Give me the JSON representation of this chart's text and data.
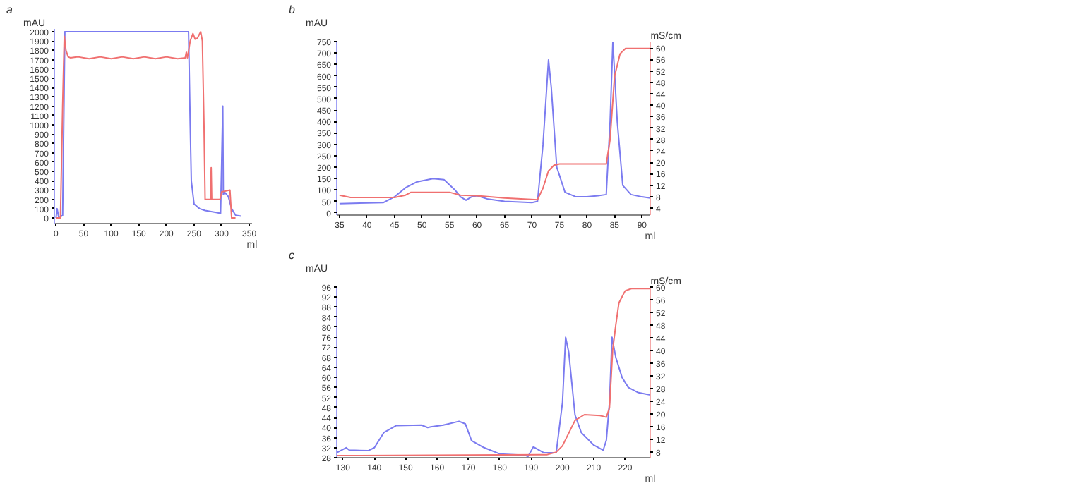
{
  "chart_data": [
    {
      "type": "line",
      "title": "a",
      "xlabel": "ml",
      "ylabel": "mAU",
      "xlim": [
        -3,
        355
      ],
      "ylim": [
        -60,
        2030
      ],
      "xticks": [
        0,
        50,
        100,
        150,
        200,
        250,
        300,
        350
      ],
      "yticks": [
        0,
        100,
        200,
        300,
        400,
        500,
        600,
        700,
        800,
        900,
        1000,
        1100,
        1200,
        1300,
        1400,
        1500,
        1600,
        1700,
        1800,
        1900,
        2000
      ],
      "grid": false,
      "series": [
        {
          "color": "#7b7bf0",
          "x": [
            0,
            2,
            5,
            8,
            12,
            16,
            240,
            243,
            245,
            250,
            260,
            270,
            290,
            298,
            300,
            302,
            303,
            305,
            312,
            318,
            325,
            335
          ],
          "values": [
            0,
            100,
            0,
            10,
            30,
            2000,
            2000,
            1000,
            400,
            150,
            100,
            80,
            60,
            50,
            600,
            1200,
            250,
            280,
            230,
            100,
            30,
            20
          ]
        },
        {
          "color": "#f07070",
          "x": [
            0,
            8,
            12,
            15,
            18,
            22,
            26,
            40,
            60,
            80,
            100,
            120,
            140,
            160,
            180,
            200,
            220,
            234,
            236,
            238,
            243,
            248,
            252,
            256,
            262,
            265,
            268,
            270,
            280,
            281,
            282,
            283,
            297,
            300,
            315,
            318,
            325
          ],
          "values": [
            0,
            0,
            1200,
            1950,
            1800,
            1730,
            1720,
            1730,
            1710,
            1730,
            1710,
            1730,
            1710,
            1730,
            1710,
            1730,
            1710,
            1720,
            1780,
            1720,
            1900,
            1980,
            1920,
            1930,
            2000,
            1900,
            1000,
            200,
            200,
            540,
            200,
            200,
            200,
            280,
            300,
            0,
            0
          ]
        }
      ]
    },
    {
      "type": "line",
      "title": "b",
      "xlabel": "ml",
      "ylabel": "mAU",
      "y2label": "mS/cm",
      "xlim": [
        34.5,
        91.5
      ],
      "ylim": [
        -10,
        750
      ],
      "y2lim": [
        1.5,
        62.3
      ],
      "xticks": [
        35,
        40,
        45,
        50,
        55,
        60,
        65,
        70,
        75,
        80,
        85,
        90
      ],
      "yticks": [
        0,
        50,
        100,
        150,
        200,
        250,
        300,
        350,
        400,
        450,
        500,
        550,
        600,
        650,
        700,
        750
      ],
      "y2ticks": [
        4,
        8,
        12,
        16,
        20,
        24,
        28,
        32,
        36,
        40,
        44,
        48,
        52,
        56,
        60
      ],
      "grid": false,
      "series": [
        {
          "color": "#7b7bf0",
          "x": [
            35,
            43,
            45,
            47,
            49,
            52,
            54,
            56,
            57,
            58,
            59,
            60,
            62,
            65,
            70,
            71,
            72,
            73,
            73.5,
            74.5,
            76,
            78,
            80,
            82,
            83.5,
            84.2,
            84.7,
            85.5,
            86.5,
            88,
            90,
            91.5
          ],
          "values": [
            40,
            45,
            70,
            110,
            135,
            150,
            145,
            100,
            70,
            55,
            70,
            75,
            60,
            50,
            45,
            50,
            300,
            670,
            550,
            200,
            90,
            70,
            70,
            75,
            80,
            400,
            750,
            400,
            120,
            80,
            70,
            65
          ]
        },
        {
          "color": "#f07070",
          "axis": "y2",
          "x": [
            35,
            37,
            45,
            47,
            48,
            55,
            57,
            60,
            65,
            71,
            72,
            73,
            74,
            75,
            83.5,
            84.2,
            85,
            86,
            87,
            91.5
          ],
          "values": [
            8.5,
            7.7,
            7.7,
            8.5,
            9.5,
            9.5,
            8.5,
            8.3,
            7.5,
            6.9,
            11,
            17,
            19,
            19.4,
            19.4,
            28,
            50,
            58,
            59.9,
            59.9
          ]
        }
      ]
    },
    {
      "type": "line",
      "title": "c",
      "xlabel": "ml",
      "ylabel": "mAU",
      "y2label": "mS/cm",
      "xlim": [
        128,
        228
      ],
      "ylim": [
        28,
        96
      ],
      "y2lim": [
        6.25,
        60
      ],
      "xticks": [
        130,
        140,
        150,
        160,
        170,
        180,
        190,
        200,
        210,
        220
      ],
      "yticks": [
        28,
        32,
        36,
        40,
        44,
        48,
        52,
        56,
        60,
        64,
        68,
        72,
        76,
        80,
        84,
        88,
        92,
        96
      ],
      "y2ticks": [
        8,
        12,
        16,
        20,
        24,
        28,
        32,
        36,
        40,
        44,
        48,
        52,
        56,
        60
      ],
      "grid": false,
      "series": [
        {
          "color": "#7b7bf0",
          "x": [
            128,
            131,
            132,
            138,
            140,
            143,
            147,
            155,
            157,
            158,
            162,
            167,
            169,
            171,
            175,
            180,
            188,
            189,
            190.7,
            194,
            198,
            200,
            201,
            202,
            204,
            206,
            210,
            213,
            214,
            215,
            215.8,
            217,
            219,
            221,
            224,
            228
          ],
          "values": [
            30,
            32,
            31,
            30.8,
            32,
            38,
            40.8,
            41,
            40,
            40.3,
            41,
            42.5,
            41.5,
            34.8,
            32,
            29.5,
            29,
            28.5,
            32.3,
            30,
            30,
            50,
            76,
            70,
            45,
            38,
            33,
            31,
            35,
            50,
            76,
            68,
            60,
            56,
            54,
            53
          ]
        },
        {
          "color": "#f07070",
          "axis": "y2",
          "x": [
            128,
            195,
            198,
            200,
            202,
            204,
            207,
            212,
            214,
            215,
            216,
            217,
            218,
            220,
            222,
            228
          ],
          "values": [
            6.9,
            7.2,
            8,
            10,
            14,
            18,
            19.8,
            19.5,
            19,
            22,
            40,
            48,
            55,
            58.8,
            59.5,
            59.5
          ]
        }
      ]
    }
  ]
}
